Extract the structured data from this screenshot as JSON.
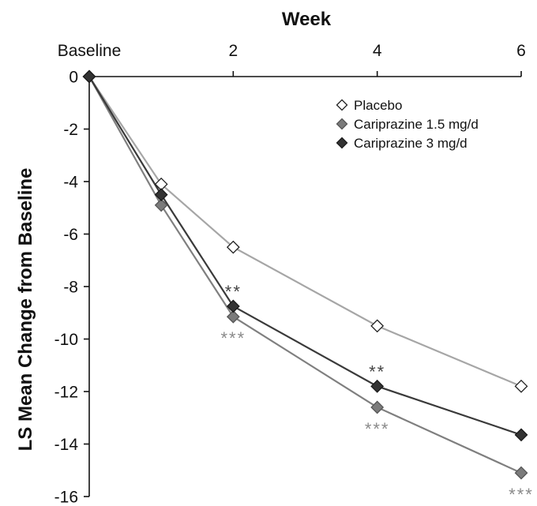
{
  "chart_data": {
    "type": "line",
    "x_axis": {
      "title": "Week",
      "position": "top",
      "range": [
        0,
        6
      ],
      "ticks": [
        {
          "value": 0,
          "label": "Baseline"
        },
        {
          "value": 2,
          "label": "2"
        },
        {
          "value": 4,
          "label": "4"
        },
        {
          "value": 6,
          "label": "6"
        }
      ]
    },
    "y_axis": {
      "title": "LS Mean Change from Baseline",
      "range": [
        -16,
        0
      ],
      "ticks": [
        {
          "value": 0,
          "label": "0"
        },
        {
          "value": -2,
          "label": "-2"
        },
        {
          "value": -4,
          "label": "-4"
        },
        {
          "value": -6,
          "label": "-6"
        },
        {
          "value": -8,
          "label": "-8"
        },
        {
          "value": -10,
          "label": "-10"
        },
        {
          "value": -12,
          "label": "-12"
        },
        {
          "value": -14,
          "label": "-14"
        },
        {
          "value": -16,
          "label": "-16"
        }
      ]
    },
    "grid": false,
    "legend": {
      "placement": "top-right"
    },
    "x": [
      0,
      1,
      2,
      4,
      6
    ],
    "series": [
      {
        "name": "Placebo",
        "marker": "diamond-open",
        "line_color": "#a6a6a6",
        "fill": "#ffffff",
        "stroke": "#222222",
        "values": [
          0,
          -4.1,
          -6.5,
          -9.5,
          -11.8
        ]
      },
      {
        "name": "Cariprazine 1.5 mg/d",
        "marker": "diamond-filled",
        "line_color": "#7f7f7f",
        "fill": "#7b7b7b",
        "stroke": "#555555",
        "values": [
          0,
          -4.9,
          -9.15,
          -12.6,
          -15.1
        ]
      },
      {
        "name": "Cariprazine 3 mg/d",
        "marker": "diamond-filled",
        "line_color": "#3a3a3a",
        "fill": "#333333",
        "stroke": "#1a1a1a",
        "values": [
          0,
          -4.5,
          -8.75,
          -11.8,
          -13.65
        ]
      }
    ],
    "annotations": [
      {
        "text": "**",
        "x": 2,
        "y": -8.75,
        "series": "Cariprazine 3 mg/d",
        "position": "above",
        "color": "#444444"
      },
      {
        "text": "***",
        "x": 2,
        "y": -9.15,
        "series": "Cariprazine 1.5 mg/d",
        "position": "below",
        "color": "#8a8a8a"
      },
      {
        "text": "**",
        "x": 4,
        "y": -11.8,
        "series": "Cariprazine 3 mg/d",
        "position": "above",
        "color": "#444444"
      },
      {
        "text": "***",
        "x": 4,
        "y": -12.6,
        "series": "Cariprazine 1.5 mg/d",
        "position": "below",
        "color": "#8a8a8a"
      },
      {
        "text": "***",
        "x": 6,
        "y": -15.1,
        "series": "Cariprazine 1.5 mg/d",
        "position": "below",
        "color": "#8a8a8a"
      }
    ]
  }
}
